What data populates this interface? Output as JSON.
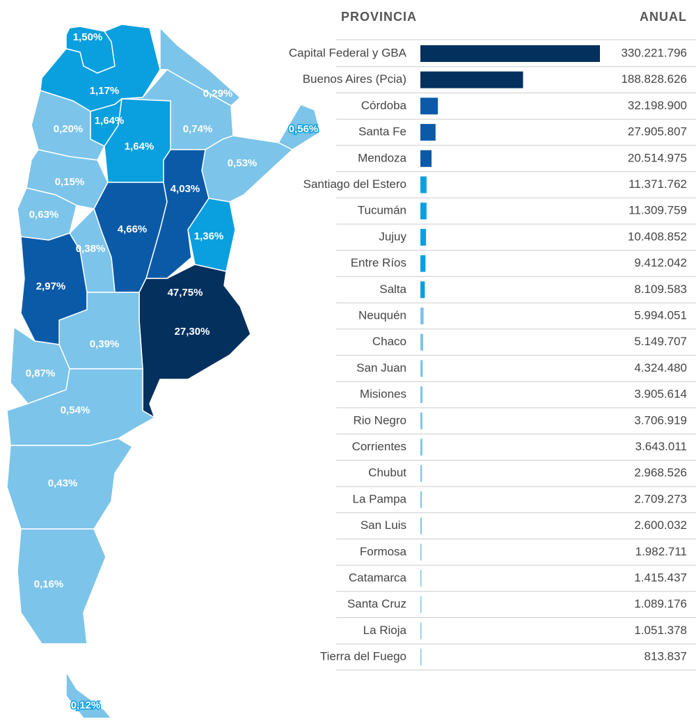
{
  "map": {
    "regions": [
      {
        "name": "Jujuy",
        "labels": [
          "1,50%"
        ],
        "color": "#0a9fdf"
      },
      {
        "name": "Salta",
        "labels": [
          "1,17%"
        ],
        "color": "#0a9fdf"
      },
      {
        "name": "Formosa",
        "labels": [
          "0,29%"
        ],
        "color": "#7cc4ea"
      },
      {
        "name": "Chaco",
        "labels": [
          "0,74%"
        ],
        "color": "#7cc4ea"
      },
      {
        "name": "Tucumán",
        "labels": [
          "1,64%"
        ],
        "color": "#0a9fdf"
      },
      {
        "name": "Santiago del Estero",
        "labels": [
          "1,64%"
        ],
        "color": "#0a9fdf"
      },
      {
        "name": "Catamarca",
        "labels": [
          "0,20%"
        ],
        "color": "#7cc4ea"
      },
      {
        "name": "Misiones",
        "labels": [
          "0,56%"
        ],
        "color": "#7cc4ea"
      },
      {
        "name": "Corrientes",
        "labels": [
          "0,53%"
        ],
        "color": "#7cc4ea"
      },
      {
        "name": "La Rioja",
        "labels": [
          "0,15%"
        ],
        "color": "#7cc4ea"
      },
      {
        "name": "San Juan",
        "labels": [
          "0,63%"
        ],
        "color": "#7cc4ea"
      },
      {
        "name": "Córdoba",
        "labels": [
          "4,66%"
        ],
        "color": "#0a5aa8"
      },
      {
        "name": "Santa Fe",
        "labels": [
          "4,03%"
        ],
        "color": "#0a5aa8"
      },
      {
        "name": "Entre Ríos",
        "labels": [
          "1,36%"
        ],
        "color": "#0a9fdf"
      },
      {
        "name": "San Luis",
        "labels": [
          "0,38%"
        ],
        "color": "#7cc4ea"
      },
      {
        "name": "Mendoza",
        "labels": [
          "2,97%"
        ],
        "color": "#0a5aa8"
      },
      {
        "name": "Buenos Aires",
        "labels": [
          "47,75%",
          "27,30%"
        ],
        "color": "#04305e"
      },
      {
        "name": "La Pampa",
        "labels": [
          "0,39%"
        ],
        "color": "#7cc4ea"
      },
      {
        "name": "Neuquén",
        "labels": [
          "0,87%"
        ],
        "color": "#7cc4ea"
      },
      {
        "name": "Rio Negro",
        "labels": [
          "0,54%"
        ],
        "color": "#7cc4ea"
      },
      {
        "name": "Chubut",
        "labels": [
          "0,43%"
        ],
        "color": "#7cc4ea"
      },
      {
        "name": "Santa Cruz",
        "labels": [
          "0,16%"
        ],
        "color": "#7cc4ea"
      },
      {
        "name": "Tierra del Fuego",
        "labels": [
          "0,12%"
        ],
        "color": "#7cc4ea"
      }
    ]
  },
  "chart_data": {
    "type": "bar",
    "category_header": "PROVINCIA",
    "value_header": "ANUAL",
    "categories": [
      "Capital Federal y GBA",
      "Buenos Aires (Pcia)",
      "Córdoba",
      "Santa Fe",
      "Mendoza",
      "Santiago del Estero",
      "Tucumán",
      "Jujuy",
      "Entre Ríos",
      "Salta",
      "Neuquén",
      "Chaco",
      "San Juan",
      "Misiones",
      "Rio Negro",
      "Corrientes",
      "Chubut",
      "La Pampa",
      "San Luis",
      "Formosa",
      "Catamarca",
      "Santa Cruz",
      "La Rioja",
      "Tierra del Fuego"
    ],
    "values": [
      330221796,
      188828626,
      32198900,
      27905807,
      20514975,
      11371762,
      11309759,
      10408852,
      9412042,
      8109583,
      5994051,
      5149707,
      4324480,
      3905614,
      3706919,
      3643011,
      2968526,
      2709273,
      2600032,
      1982711,
      1415437,
      1089176,
      1051378,
      813837
    ],
    "value_labels": [
      "330.221.796",
      "188.828.626",
      "32.198.900",
      "27.905.807",
      "20.514.975",
      "11.371.762",
      "11.309.759",
      "10.408.852",
      "9.412.042",
      "8.109.583",
      "5.994.051",
      "5.149.707",
      "4.324.480",
      "3.905.614",
      "3.706.919",
      "3.643.011",
      "2.968.526",
      "2.709.273",
      "2.600.032",
      "1.982.711",
      "1.415.437",
      "1.089.176",
      "1.051.378",
      "813.837"
    ],
    "colors": [
      "#04305e",
      "#04305e",
      "#0a5aa8",
      "#0a5aa8",
      "#0a5aa8",
      "#0a9fdf",
      "#0a9fdf",
      "#0a9fdf",
      "#0a9fdf",
      "#0a9fdf",
      "#7cc4ea",
      "#7cc4ea",
      "#7cc4ea",
      "#7cc4ea",
      "#7cc4ea",
      "#7cc4ea",
      "#7cc4ea",
      "#7cc4ea",
      "#7cc4ea",
      "#7cc4ea",
      "#7cc4ea",
      "#7cc4ea",
      "#7cc4ea",
      "#7cc4ea"
    ]
  }
}
